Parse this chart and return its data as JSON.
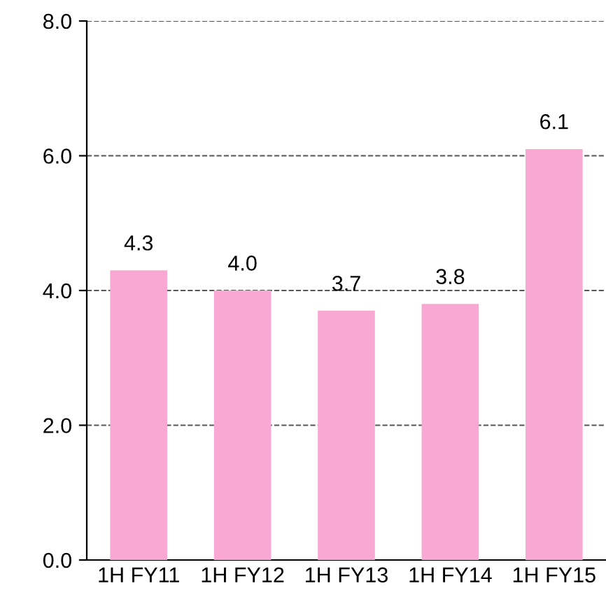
{
  "chart_data": {
    "type": "bar",
    "categories": [
      "1H FY11",
      "1H FY12",
      "1H FY13",
      "1H FY14",
      "1H FY15"
    ],
    "values": [
      4.3,
      4.0,
      3.7,
      3.8,
      6.1
    ],
    "color": "#f8a8d2",
    "value_labels": [
      "4.3",
      "4.0",
      "3.7",
      "3.8",
      "6.1"
    ],
    "ylim": [
      0,
      8
    ],
    "yticks": [
      {
        "value": 0,
        "label": "0.0"
      },
      {
        "value": 2,
        "label": "2.0"
      },
      {
        "value": 4,
        "label": "4.0"
      },
      {
        "value": 6,
        "label": "6.0"
      },
      {
        "value": 8,
        "label": "8.0"
      }
    ],
    "grid": "y",
    "line_style": "dashed"
  }
}
